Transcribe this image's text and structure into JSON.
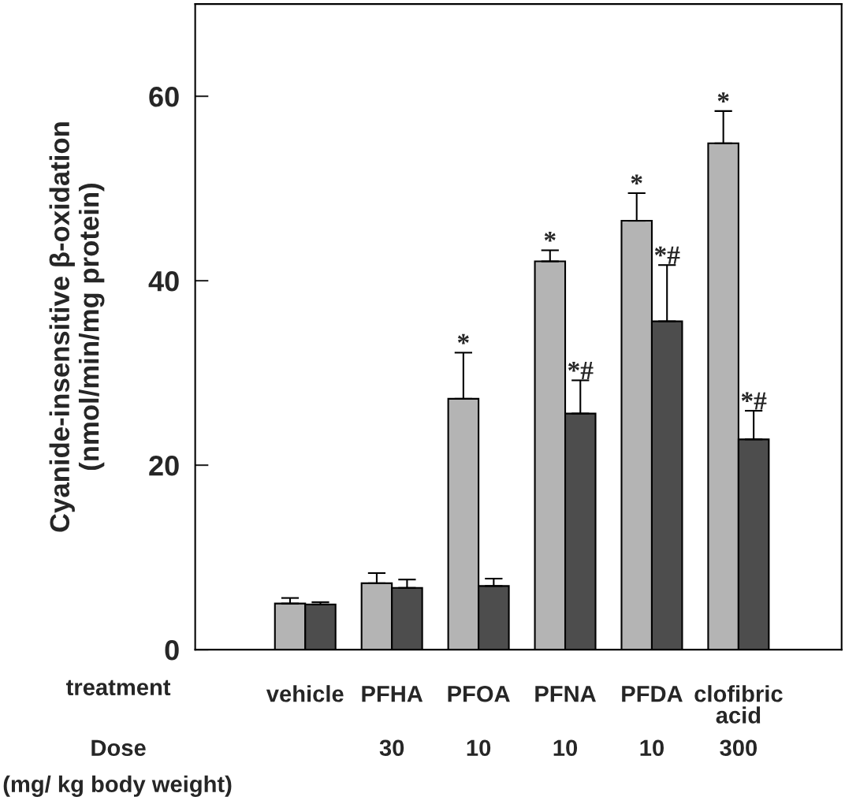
{
  "chart_data": {
    "type": "bar",
    "ylabel": "Cyanide-insensitive β-oxidation\n(nmol/min/mg protein)",
    "categories": [
      "vehicle",
      "PFHA",
      "PFOA",
      "PFNA",
      "PFDA",
      "clofibric\nacid"
    ],
    "series": [
      {
        "color": "#b4b4b4",
        "values": [
          5.0,
          7.2,
          27.2,
          42.1,
          46.5,
          54.9
        ],
        "errors": [
          0.6,
          1.1,
          5.0,
          1.2,
          3.0,
          3.5
        ],
        "value_labels": [
          null,
          null,
          "*",
          "*",
          "*",
          "*"
        ]
      },
      {
        "color": "#4d4d4d",
        "values": [
          4.9,
          6.7,
          6.9,
          25.6,
          35.6,
          22.8
        ],
        "errors": [
          0.25,
          0.9,
          0.8,
          3.6,
          6.1,
          3.1
        ],
        "value_labels": [
          null,
          null,
          null,
          "*#",
          "*#",
          "*#"
        ]
      }
    ],
    "ylim": [
      0,
      70
    ],
    "yticks": [
      0,
      20,
      40,
      60
    ],
    "annotations": [
      "treatment",
      "Dose",
      "(mg/ kg body weight)",
      "30",
      "10",
      "10",
      "10",
      "300"
    ]
  }
}
